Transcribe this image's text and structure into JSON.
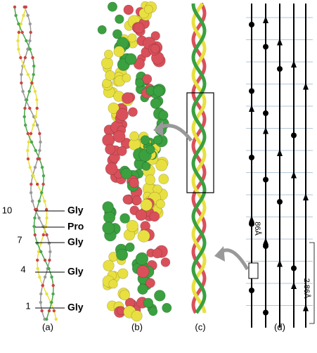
{
  "residues": [
    {
      "number": "10",
      "name": "Gly"
    },
    {
      "name": "Pro"
    },
    {
      "number": "7",
      "name": "Gly"
    },
    {
      "number": "4",
      "name": "Gly"
    },
    {
      "number": "1",
      "name": "Gly"
    }
  ],
  "panels": [
    "(a)",
    "(b)",
    "(c)",
    "(d)"
  ],
  "dimensions": {
    "pitch": "86Å",
    "rise": "2.86Å"
  }
}
